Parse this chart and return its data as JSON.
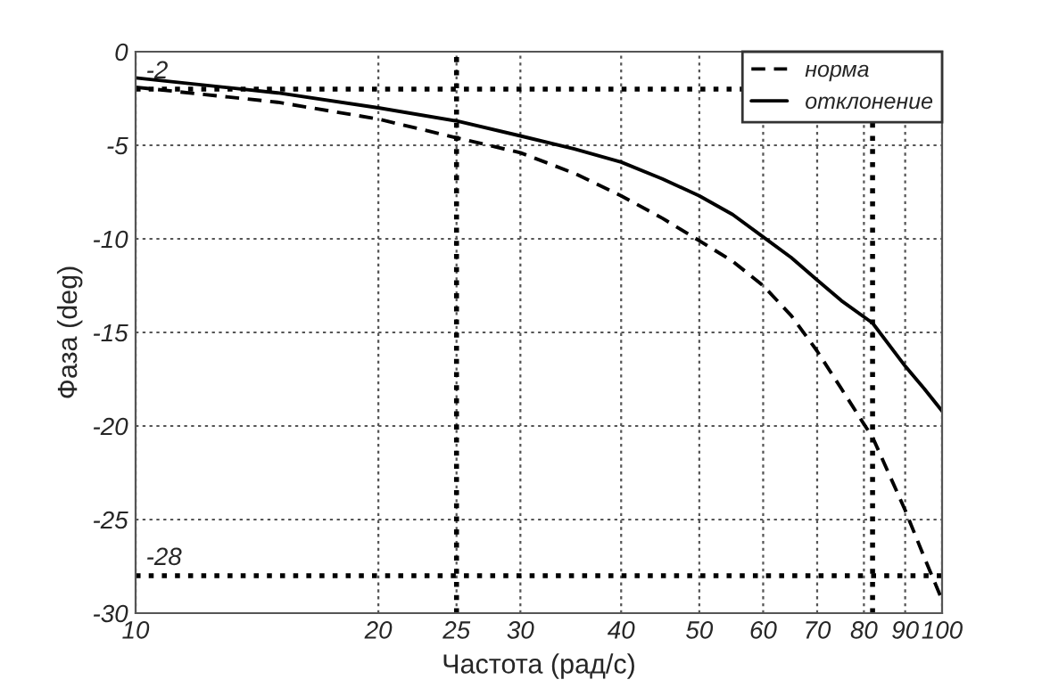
{
  "chart_data": {
    "type": "line",
    "xlabel": "Частота (рад/с)",
    "ylabel": "Фаза (deg)",
    "log": "x",
    "xlim": [
      10,
      100
    ],
    "xticks": [
      10,
      20,
      25,
      30,
      40,
      50,
      60,
      70,
      80,
      90,
      100
    ],
    "ylim": [
      -30,
      0
    ],
    "yticks": [
      -30,
      -25,
      -20,
      -15,
      -10,
      -5,
      0
    ],
    "grid": true,
    "legend": "top right",
    "marker": "none",
    "series": [
      {
        "name": "норма",
        "color": "#000000",
        "line_style": "dashed",
        "x": [
          10,
          15,
          20,
          25,
          30,
          35,
          40,
          45,
          50,
          55,
          60,
          65,
          70,
          75,
          80,
          82,
          90,
          95,
          100
        ],
        "values": [
          -1.9,
          -2.7,
          -3.6,
          -4.6,
          -5.4,
          -6.5,
          -7.7,
          -8.9,
          -10.1,
          -11.2,
          -12.5,
          -14.1,
          -16.0,
          -18.0,
          -19.9,
          -20.6,
          -24.5,
          -27.0,
          -29.3
        ]
      },
      {
        "name": "отклонение",
        "color": "#000000",
        "line_style": "solid",
        "x": [
          10,
          15,
          20,
          25,
          30,
          35,
          40,
          45,
          50,
          55,
          60,
          65,
          70,
          75,
          82,
          90,
          95,
          100
        ],
        "values": [
          -1.4,
          -2.2,
          -3.0,
          -3.7,
          -4.5,
          -5.2,
          -5.9,
          -6.8,
          -7.7,
          -8.7,
          -9.9,
          -11.0,
          -12.2,
          -13.3,
          -14.5,
          -16.8,
          -18.0,
          -19.2
        ]
      }
    ],
    "ref_lines": [
      {
        "axis": "y",
        "value": -2,
        "label": "-2",
        "line_style": "dotted"
      },
      {
        "axis": "y",
        "value": -28,
        "label": "-28",
        "line_style": "dotted"
      },
      {
        "axis": "x",
        "value": 25,
        "line_style": "dotted"
      },
      {
        "axis": "x",
        "value": 82,
        "line_style": "dotted"
      }
    ]
  }
}
